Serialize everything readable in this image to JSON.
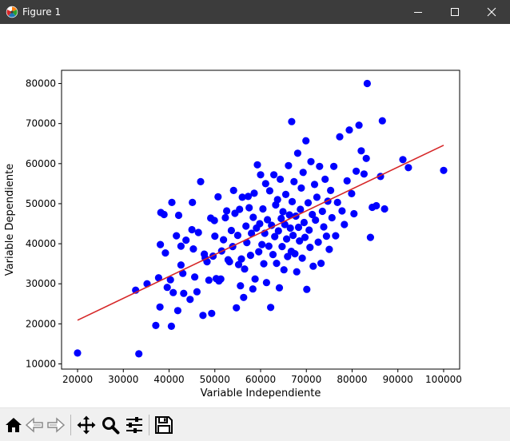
{
  "window": {
    "title": "Figure 1",
    "icons": {
      "app": "matplotlib-icon",
      "minimize": "minimize-icon",
      "maximize": "maximize-icon",
      "close": "close-icon"
    }
  },
  "toolbar": {
    "tools": [
      "home-icon",
      "back-icon",
      "forward-icon",
      "pan-icon",
      "zoom-icon",
      "configure-subplots-icon",
      "save-icon"
    ]
  },
  "colors": {
    "titlebar": "#3c3c3c",
    "points": "#0000ff",
    "fit_line": "#d62728",
    "toolbar": "#f0f0f0"
  },
  "chart_data": {
    "type": "scatter",
    "title": "",
    "xlabel": "Variable Independiente",
    "ylabel": "Variable Dependiente",
    "xlim": [
      16500,
      103500
    ],
    "ylim": [
      8700,
      83300
    ],
    "xticks": [
      20000,
      30000,
      40000,
      50000,
      60000,
      70000,
      80000,
      90000,
      100000
    ],
    "yticks": [
      10000,
      20000,
      30000,
      40000,
      50000,
      60000,
      70000,
      80000
    ],
    "grid": false,
    "legend": "none",
    "series": [
      {
        "kind": "scatter",
        "color": "#0000ff",
        "points": [
          [
            20000,
            12700
          ],
          [
            33400,
            12500
          ],
          [
            83300,
            80000
          ],
          [
            66800,
            70500
          ],
          [
            86600,
            70700
          ],
          [
            32700,
            28400
          ],
          [
            35200,
            30000
          ],
          [
            37100,
            19600
          ],
          [
            37700,
            31500
          ],
          [
            38000,
            24200
          ],
          [
            38100,
            39800
          ],
          [
            38200,
            47800
          ],
          [
            38900,
            47300
          ],
          [
            39200,
            37700
          ],
          [
            39600,
            29100
          ],
          [
            40300,
            31000
          ],
          [
            40500,
            19400
          ],
          [
            40600,
            50300
          ],
          [
            40900,
            27800
          ],
          [
            41600,
            42000
          ],
          [
            41900,
            23300
          ],
          [
            42100,
            47100
          ],
          [
            42600,
            39400
          ],
          [
            42600,
            34700
          ],
          [
            43000,
            32600
          ],
          [
            43200,
            27600
          ],
          [
            43700,
            40900
          ],
          [
            44600,
            26100
          ],
          [
            45000,
            43500
          ],
          [
            45100,
            50300
          ],
          [
            45300,
            38700
          ],
          [
            45600,
            31700
          ],
          [
            46100,
            28000
          ],
          [
            46400,
            42800
          ],
          [
            46900,
            55500
          ],
          [
            47400,
            22100
          ],
          [
            47700,
            37400
          ],
          [
            47900,
            36400
          ],
          [
            48300,
            35500
          ],
          [
            48700,
            30900
          ],
          [
            49100,
            46400
          ],
          [
            49300,
            22600
          ],
          [
            49600,
            36900
          ],
          [
            49900,
            45800
          ],
          [
            50000,
            41900
          ],
          [
            50300,
            31300
          ],
          [
            50700,
            51700
          ],
          [
            50900,
            30700
          ],
          [
            51300,
            31200
          ],
          [
            51500,
            38200
          ],
          [
            51900,
            41000
          ],
          [
            52300,
            46500
          ],
          [
            52600,
            48200
          ],
          [
            52900,
            36000
          ],
          [
            53200,
            35500
          ],
          [
            53600,
            43300
          ],
          [
            53900,
            39300
          ],
          [
            54100,
            53300
          ],
          [
            54400,
            47600
          ],
          [
            54700,
            24000
          ],
          [
            55000,
            42100
          ],
          [
            55200,
            34800
          ],
          [
            55400,
            48600
          ],
          [
            55600,
            29500
          ],
          [
            55800,
            36200
          ],
          [
            56000,
            51600
          ],
          [
            56300,
            26600
          ],
          [
            56500,
            33700
          ],
          [
            56800,
            44400
          ],
          [
            57000,
            40300
          ],
          [
            57300,
            51800
          ],
          [
            57500,
            49000
          ],
          [
            57800,
            37100
          ],
          [
            58000,
            42600
          ],
          [
            58300,
            28700
          ],
          [
            58400,
            46600
          ],
          [
            58600,
            52600
          ],
          [
            58800,
            31200
          ],
          [
            59100,
            43900
          ],
          [
            59300,
            59700
          ],
          [
            59600,
            38000
          ],
          [
            59800,
            45000
          ],
          [
            60000,
            57200
          ],
          [
            60300,
            39800
          ],
          [
            60500,
            48700
          ],
          [
            60700,
            35000
          ],
          [
            60900,
            42600
          ],
          [
            61100,
            55000
          ],
          [
            61300,
            30300
          ],
          [
            61500,
            46000
          ],
          [
            61800,
            39400
          ],
          [
            62000,
            53200
          ],
          [
            62200,
            24100
          ],
          [
            62400,
            44600
          ],
          [
            62700,
            37300
          ],
          [
            62900,
            57200
          ],
          [
            63100,
            41800
          ],
          [
            63300,
            49700
          ],
          [
            63500,
            35100
          ],
          [
            63700,
            51000
          ],
          [
            63900,
            43200
          ],
          [
            64100,
            29000
          ],
          [
            64300,
            56100
          ],
          [
            64500,
            46300
          ],
          [
            64700,
            39300
          ],
          [
            64900,
            48000
          ],
          [
            65100,
            33500
          ],
          [
            65300,
            44800
          ],
          [
            65500,
            52300
          ],
          [
            65700,
            41200
          ],
          [
            65900,
            36800
          ],
          [
            66100,
            59500
          ],
          [
            66300,
            47200
          ],
          [
            66500,
            43900
          ],
          [
            66700,
            38100
          ],
          [
            66900,
            50500
          ],
          [
            67100,
            42100
          ],
          [
            67300,
            55500
          ],
          [
            67500,
            37500
          ],
          [
            67700,
            46900
          ],
          [
            67900,
            33000
          ],
          [
            68100,
            62600
          ],
          [
            68300,
            44100
          ],
          [
            68500,
            40700
          ],
          [
            68700,
            48600
          ],
          [
            68900,
            53900
          ],
          [
            69100,
            36400
          ],
          [
            69300,
            57800
          ],
          [
            69500,
            45300
          ],
          [
            69700,
            41600
          ],
          [
            69900,
            65700
          ],
          [
            70100,
            28600
          ],
          [
            70400,
            50200
          ],
          [
            70600,
            43400
          ],
          [
            70800,
            39100
          ],
          [
            71000,
            60500
          ],
          [
            71300,
            47300
          ],
          [
            71500,
            34400
          ],
          [
            71800,
            54800
          ],
          [
            72000,
            45900
          ],
          [
            72300,
            51600
          ],
          [
            72600,
            40400
          ],
          [
            72900,
            59300
          ],
          [
            73200,
            35100
          ],
          [
            73500,
            48100
          ],
          [
            73800,
            44200
          ],
          [
            74100,
            56100
          ],
          [
            74400,
            41900
          ],
          [
            74700,
            50600
          ],
          [
            75000,
            38600
          ],
          [
            75300,
            53300
          ],
          [
            75600,
            46500
          ],
          [
            76000,
            59300
          ],
          [
            76400,
            42000
          ],
          [
            76800,
            50300
          ],
          [
            77300,
            66700
          ],
          [
            77800,
            48200
          ],
          [
            78300,
            44800
          ],
          [
            78900,
            55700
          ],
          [
            79400,
            68400
          ],
          [
            79900,
            52500
          ],
          [
            80400,
            47500
          ],
          [
            80900,
            58100
          ],
          [
            81500,
            69600
          ],
          [
            82000,
            63200
          ],
          [
            82600,
            57400
          ],
          [
            83100,
            61300
          ],
          [
            84000,
            41600
          ],
          [
            84400,
            49100
          ],
          [
            85300,
            49500
          ],
          [
            86200,
            56800
          ],
          [
            87100,
            48700
          ],
          [
            91100,
            61000
          ],
          [
            92300,
            59000
          ],
          [
            100000,
            58300
          ]
        ]
      },
      {
        "kind": "line",
        "color": "#d62728",
        "x": [
          20000,
          100000
        ],
        "y": [
          20900,
          64600
        ]
      }
    ]
  }
}
